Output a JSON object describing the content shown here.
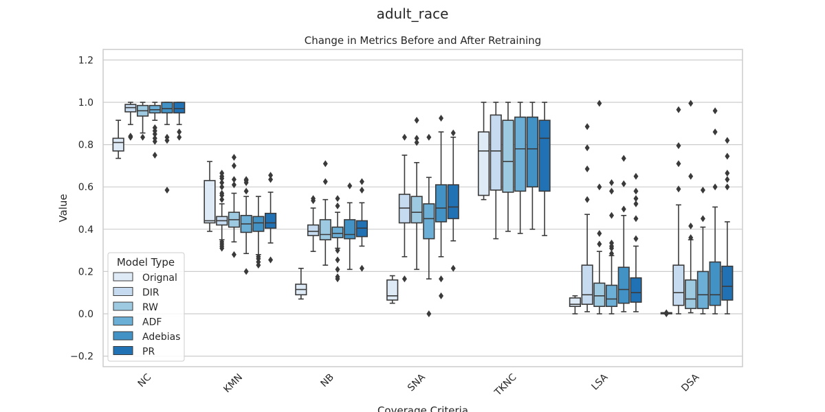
{
  "figure": {
    "suptitle": "adult_race"
  },
  "chart_data": {
    "type": "box",
    "title": "Change in Metrics Before and After Retraining",
    "xlabel": "Coverage Criteria",
    "ylabel": "Value",
    "ylim": [
      -0.25,
      1.25
    ],
    "yticks": [
      -0.2,
      0.0,
      0.2,
      0.4,
      0.6,
      0.8,
      1.0,
      1.2
    ],
    "ytick_labels": [
      "−0.2",
      "0.0",
      "0.2",
      "0.4",
      "0.6",
      "0.8",
      "1.0",
      "1.2"
    ],
    "grid": true,
    "categories": [
      "NC",
      "KMN",
      "NB",
      "SNA",
      "TKNC",
      "LSA",
      "DSA"
    ],
    "legend": {
      "title": "Model Type",
      "placement": "lower-left",
      "entries": [
        "Orignal",
        "DIR",
        "RW",
        "ADF",
        "Adebias",
        "PR"
      ]
    },
    "series": [
      {
        "name": "Orignal",
        "color": "#deebf7",
        "boxes": [
          {
            "q1": 0.77,
            "med": 0.81,
            "q3": 0.83,
            "lo": 0.735,
            "hi": 0.915,
            "fliers": []
          },
          {
            "q1": 0.43,
            "med": 0.44,
            "q3": 0.63,
            "lo": 0.39,
            "hi": 0.72,
            "fliers": []
          },
          {
            "q1": 0.09,
            "med": 0.115,
            "q3": 0.14,
            "lo": 0.07,
            "hi": 0.215,
            "fliers": []
          },
          {
            "q1": 0.065,
            "med": 0.085,
            "q3": 0.16,
            "lo": 0.05,
            "hi": 0.18,
            "fliers": []
          },
          {
            "q1": 0.56,
            "med": 0.77,
            "q3": 0.86,
            "lo": 0.54,
            "hi": 1.0,
            "fliers": []
          },
          {
            "q1": 0.035,
            "med": 0.045,
            "q3": 0.075,
            "lo": 0.0,
            "hi": 0.085,
            "fliers": []
          },
          {
            "q1": 0.0,
            "med": 0.005,
            "q3": 0.005,
            "lo": 0.0,
            "hi": 0.005,
            "fliers": [
              0.0,
              0.005
            ]
          }
        ]
      },
      {
        "name": "DIR",
        "color": "#c6dbef",
        "boxes": [
          {
            "q1": 0.955,
            "med": 0.975,
            "q3": 0.99,
            "lo": 0.895,
            "hi": 1.0,
            "fliers": [
              0.835,
              0.84
            ]
          },
          {
            "q1": 0.42,
            "med": 0.44,
            "q3": 0.46,
            "lo": 0.35,
            "hi": 0.52,
            "fliers": [
              0.31,
              0.32,
              0.33,
              0.34,
              0.54,
              0.56,
              0.57,
              0.6,
              0.62,
              0.64,
              0.65,
              0.665
            ]
          },
          {
            "q1": 0.37,
            "med": 0.39,
            "q3": 0.42,
            "lo": 0.295,
            "hi": 0.5,
            "fliers": [
              0.535,
              0.545
            ]
          },
          {
            "q1": 0.43,
            "med": 0.5,
            "q3": 0.565,
            "lo": 0.27,
            "hi": 0.75,
            "fliers": [
              0.165,
              0.835
            ]
          },
          {
            "q1": 0.585,
            "med": 0.77,
            "q3": 0.94,
            "lo": 0.355,
            "hi": 1.0,
            "fliers": []
          },
          {
            "q1": 0.045,
            "med": 0.09,
            "q3": 0.23,
            "lo": 0.01,
            "hi": 0.47,
            "fliers": [
              0.54,
              0.685,
              0.785,
              0.885
            ]
          },
          {
            "q1": 0.04,
            "med": 0.1,
            "q3": 0.23,
            "lo": 0.0,
            "hi": 0.515,
            "fliers": [
              0.59,
              0.71,
              0.795,
              0.965
            ]
          }
        ]
      },
      {
        "name": "RW",
        "color": "#9ecae1",
        "boxes": [
          {
            "q1": 0.935,
            "med": 0.96,
            "q3": 0.985,
            "lo": 0.855,
            "hi": 1.0,
            "fliers": [
              0.835
            ]
          },
          {
            "q1": 0.41,
            "med": 0.445,
            "q3": 0.48,
            "lo": 0.34,
            "hi": 0.57,
            "fliers": [
              0.28,
              0.61,
              0.635,
              0.7,
              0.74
            ]
          },
          {
            "q1": 0.35,
            "med": 0.375,
            "q3": 0.445,
            "lo": 0.23,
            "hi": 0.54,
            "fliers": [
              0.625,
              0.71
            ]
          },
          {
            "q1": 0.43,
            "med": 0.48,
            "q3": 0.555,
            "lo": 0.21,
            "hi": 0.715,
            "fliers": [
              0.81,
              0.83,
              0.915
            ]
          },
          {
            "q1": 0.575,
            "med": 0.72,
            "q3": 0.915,
            "lo": 0.39,
            "hi": 1.0,
            "fliers": []
          },
          {
            "q1": 0.035,
            "med": 0.085,
            "q3": 0.145,
            "lo": 0.0,
            "hi": 0.295,
            "fliers": [
              0.33,
              0.38,
              0.6,
              0.995
            ]
          },
          {
            "q1": 0.025,
            "med": 0.07,
            "q3": 0.16,
            "lo": 0.005,
            "hi": 0.35,
            "fliers": [
              0.36,
              0.415,
              0.65,
              0.995
            ]
          }
        ]
      },
      {
        "name": "ADF",
        "color": "#6baed6",
        "boxes": [
          {
            "q1": 0.95,
            "med": 0.965,
            "q3": 0.985,
            "lo": 0.915,
            "hi": 1.0,
            "fliers": [
              0.75,
              0.815,
              0.83,
              0.85,
              0.865,
              0.88
            ]
          },
          {
            "q1": 0.385,
            "med": 0.425,
            "q3": 0.465,
            "lo": 0.285,
            "hi": 0.555,
            "fliers": [
              0.2,
              0.58,
              0.62,
              0.63,
              0.635
            ]
          },
          {
            "q1": 0.36,
            "med": 0.38,
            "q3": 0.41,
            "lo": 0.31,
            "hi": 0.48,
            "fliers": [
              0.165,
              0.175,
              0.21,
              0.255,
              0.3,
              0.51,
              0.545
            ]
          },
          {
            "q1": 0.355,
            "med": 0.45,
            "q3": 0.52,
            "lo": 0.165,
            "hi": 0.645,
            "fliers": [
              0.0,
              0.835
            ]
          },
          {
            "q1": 0.58,
            "med": 0.78,
            "q3": 0.93,
            "lo": 0.38,
            "hi": 1.0,
            "fliers": []
          },
          {
            "q1": 0.035,
            "med": 0.07,
            "q3": 0.135,
            "lo": 0.0,
            "hi": 0.275,
            "fliers": [
              0.285,
              0.31,
              0.32,
              0.335,
              0.465,
              0.58,
              0.62
            ]
          },
          {
            "q1": 0.025,
            "med": 0.09,
            "q3": 0.2,
            "lo": 0.0,
            "hi": 0.41,
            "fliers": [
              0.45,
              0.585
            ]
          }
        ]
      },
      {
        "name": "Adebias",
        "color": "#4292c6",
        "boxes": [
          {
            "q1": 0.95,
            "med": 0.97,
            "q3": 1.0,
            "lo": 0.895,
            "hi": 1.0,
            "fliers": [
              0.585,
              0.82,
              0.835
            ]
          },
          {
            "q1": 0.39,
            "med": 0.43,
            "q3": 0.46,
            "lo": 0.28,
            "hi": 0.555,
            "fliers": [
              0.23,
              0.245,
              0.26,
              0.27
            ]
          },
          {
            "q1": 0.355,
            "med": 0.375,
            "q3": 0.445,
            "lo": 0.21,
            "hi": 0.525,
            "fliers": [
              0.605
            ]
          },
          {
            "q1": 0.435,
            "med": 0.5,
            "q3": 0.61,
            "lo": 0.27,
            "hi": 0.86,
            "fliers": [
              0.085,
              0.165,
              0.925
            ]
          },
          {
            "q1": 0.6,
            "med": 0.78,
            "q3": 0.93,
            "lo": 0.4,
            "hi": 1.0,
            "fliers": []
          },
          {
            "q1": 0.05,
            "med": 0.115,
            "q3": 0.22,
            "lo": 0.01,
            "hi": 0.465,
            "fliers": [
              0.495,
              0.615,
              0.735
            ]
          },
          {
            "q1": 0.04,
            "med": 0.09,
            "q3": 0.245,
            "lo": 0.0,
            "hi": 0.505,
            "fliers": [
              0.6,
              0.86,
              0.96
            ]
          }
        ]
      },
      {
        "name": "PR",
        "color": "#2171b5",
        "boxes": [
          {
            "q1": 0.95,
            "med": 0.97,
            "q3": 1.0,
            "lo": 0.895,
            "hi": 1.0,
            "fliers": [
              0.835,
              0.86
            ]
          },
          {
            "q1": 0.405,
            "med": 0.43,
            "q3": 0.475,
            "lo": 0.335,
            "hi": 0.575,
            "fliers": [
              0.255,
              0.635,
              0.655
            ]
          },
          {
            "q1": 0.365,
            "med": 0.405,
            "q3": 0.44,
            "lo": 0.32,
            "hi": 0.525,
            "fliers": [
              0.215,
              0.585,
              0.625
            ]
          },
          {
            "q1": 0.45,
            "med": 0.505,
            "q3": 0.61,
            "lo": 0.345,
            "hi": 0.835,
            "fliers": [
              0.215,
              0.855
            ]
          },
          {
            "q1": 0.58,
            "med": 0.83,
            "q3": 0.915,
            "lo": 0.37,
            "hi": 1.0,
            "fliers": []
          },
          {
            "q1": 0.055,
            "med": 0.1,
            "q3": 0.17,
            "lo": 0.01,
            "hi": 0.32,
            "fliers": [
              0.355,
              0.45,
              0.52,
              0.545,
              0.58,
              0.65
            ]
          },
          {
            "q1": 0.065,
            "med": 0.13,
            "q3": 0.225,
            "lo": 0.0,
            "hi": 0.435,
            "fliers": [
              0.6,
              0.635,
              0.665,
              0.745,
              0.82
            ]
          }
        ]
      }
    ]
  }
}
